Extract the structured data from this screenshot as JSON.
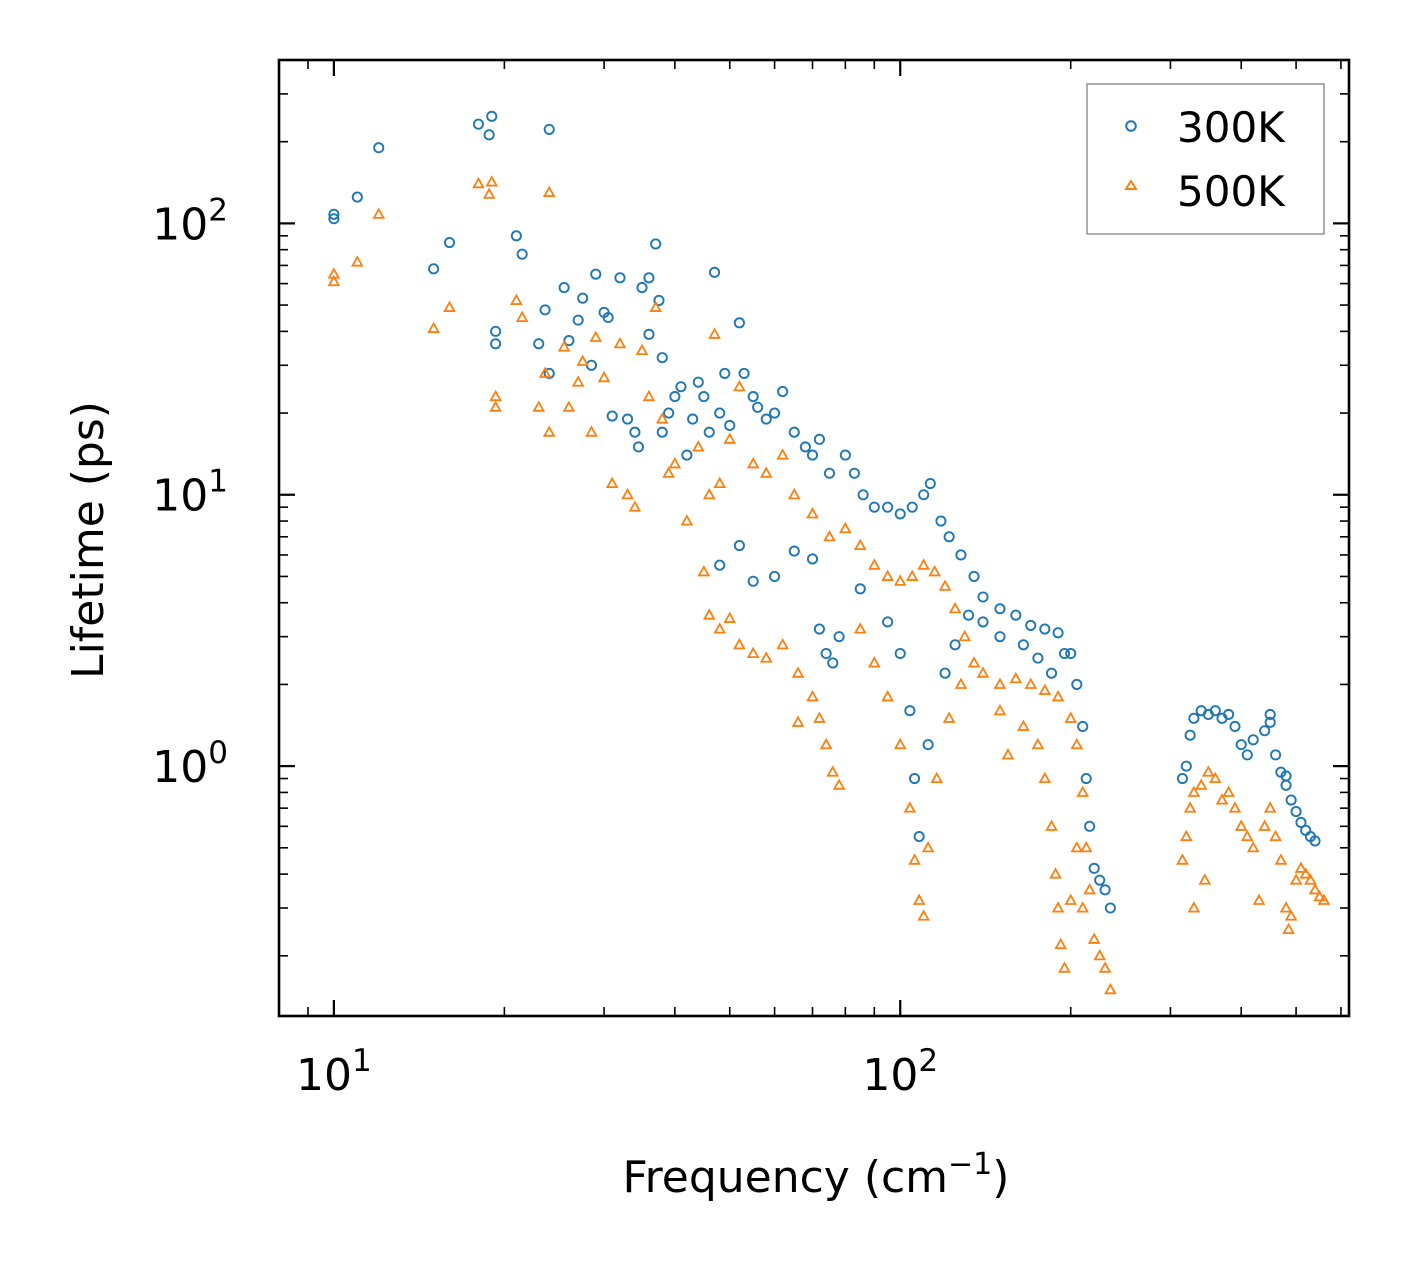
{
  "chart_data": {
    "type": "scatter",
    "title": "",
    "xlabel": "Frequency (cm",
    "xlabel_sup": "−1",
    "xlabel_close": ")",
    "ylabel": "Lifetime (ps)",
    "xscale": "log",
    "yscale": "log",
    "xlim": [
      8,
      620
    ],
    "ylim": [
      0.12,
      400
    ],
    "x_ticks": [
      {
        "value": 10,
        "base": "10",
        "exp": "1"
      },
      {
        "value": 100,
        "base": "10",
        "exp": "2"
      }
    ],
    "y_ticks": [
      {
        "value": 1,
        "base": "10",
        "exp": "0"
      },
      {
        "value": 10,
        "base": "10",
        "exp": "1"
      },
      {
        "value": 100,
        "base": "10",
        "exp": "2"
      }
    ],
    "legend_position": "top-right",
    "series": [
      {
        "name": "300K",
        "marker": "circle",
        "color": "#1f77b4",
        "points": [
          [
            10,
            104
          ],
          [
            10,
            108
          ],
          [
            11,
            125
          ],
          [
            12,
            190
          ],
          [
            15,
            68
          ],
          [
            16,
            85
          ],
          [
            18,
            232
          ],
          [
            19,
            248
          ],
          [
            18.8,
            212
          ],
          [
            19.3,
            40
          ],
          [
            19.3,
            36
          ],
          [
            21,
            90
          ],
          [
            21.5,
            77
          ],
          [
            23,
            36
          ],
          [
            23.6,
            48
          ],
          [
            24,
            222
          ],
          [
            24,
            28
          ],
          [
            25.5,
            58
          ],
          [
            26,
            37
          ],
          [
            27,
            44
          ],
          [
            27.5,
            53
          ],
          [
            28.5,
            30
          ],
          [
            29,
            65
          ],
          [
            30,
            47
          ],
          [
            30.5,
            45
          ],
          [
            31,
            19.5
          ],
          [
            32,
            63
          ],
          [
            33,
            19
          ],
          [
            34,
            17
          ],
          [
            34.5,
            15
          ],
          [
            35,
            58
          ],
          [
            36,
            39
          ],
          [
            36,
            63
          ],
          [
            37,
            84
          ],
          [
            37.5,
            52
          ],
          [
            38,
            32
          ],
          [
            38,
            17
          ],
          [
            39,
            20
          ],
          [
            40,
            23
          ],
          [
            41,
            25
          ],
          [
            42,
            14
          ],
          [
            43,
            19
          ],
          [
            44,
            26
          ],
          [
            45,
            23
          ],
          [
            46,
            17
          ],
          [
            47,
            66
          ],
          [
            48,
            20
          ],
          [
            49,
            28
          ],
          [
            50,
            18
          ],
          [
            52,
            43
          ],
          [
            53,
            28
          ],
          [
            55,
            23
          ],
          [
            56,
            21
          ],
          [
            58,
            19
          ],
          [
            60,
            20
          ],
          [
            62,
            24
          ],
          [
            65,
            17
          ],
          [
            68,
            15
          ],
          [
            70,
            14
          ],
          [
            72,
            16
          ],
          [
            75,
            12
          ],
          [
            80,
            14
          ],
          [
            83,
            12
          ],
          [
            86,
            10
          ],
          [
            90,
            9
          ],
          [
            95,
            9
          ],
          [
            100,
            8.5
          ],
          [
            105,
            9
          ],
          [
            110,
            10
          ],
          [
            113,
            11
          ],
          [
            118,
            8
          ],
          [
            122,
            7
          ],
          [
            128,
            6
          ],
          [
            135,
            5
          ],
          [
            140,
            4.2
          ],
          [
            150,
            3.8
          ],
          [
            160,
            3.6
          ],
          [
            170,
            3.3
          ],
          [
            180,
            3.2
          ],
          [
            190,
            3.1
          ],
          [
            200,
            2.6
          ],
          [
            205,
            2.0
          ],
          [
            210,
            1.4
          ],
          [
            213,
            0.9
          ],
          [
            216,
            0.6
          ],
          [
            220,
            0.42
          ],
          [
            225,
            0.38
          ],
          [
            230,
            0.35
          ],
          [
            235,
            0.3
          ],
          [
            48,
            5.5
          ],
          [
            52,
            6.5
          ],
          [
            55,
            4.8
          ],
          [
            60,
            5.0
          ],
          [
            65,
            6.2
          ],
          [
            70,
            5.8
          ],
          [
            72,
            3.2
          ],
          [
            74,
            2.6
          ],
          [
            76,
            2.4
          ],
          [
            78,
            3.0
          ],
          [
            85,
            4.5
          ],
          [
            95,
            3.4
          ],
          [
            100,
            2.6
          ],
          [
            104,
            1.6
          ],
          [
            106,
            0.9
          ],
          [
            108,
            0.55
          ],
          [
            112,
            1.2
          ],
          [
            120,
            2.2
          ],
          [
            125,
            2.8
          ],
          [
            132,
            3.6
          ],
          [
            140,
            3.4
          ],
          [
            150,
            3.0
          ],
          [
            165,
            2.8
          ],
          [
            175,
            2.5
          ],
          [
            185,
            2.2
          ],
          [
            195,
            2.6
          ],
          [
            315,
            0.9
          ],
          [
            320,
            1.0
          ],
          [
            325,
            1.3
          ],
          [
            330,
            1.5
          ],
          [
            340,
            1.6
          ],
          [
            350,
            1.55
          ],
          [
            360,
            1.6
          ],
          [
            370,
            1.5
          ],
          [
            380,
            1.55
          ],
          [
            390,
            1.4
          ],
          [
            400,
            1.2
          ],
          [
            410,
            1.1
          ],
          [
            420,
            1.25
          ],
          [
            440,
            1.35
          ],
          [
            450,
            1.45
          ],
          [
            460,
            1.1
          ],
          [
            470,
            0.95
          ],
          [
            480,
            0.85
          ],
          [
            490,
            0.75
          ],
          [
            500,
            0.68
          ],
          [
            510,
            0.62
          ],
          [
            520,
            0.58
          ],
          [
            530,
            0.55
          ],
          [
            540,
            0.53
          ],
          [
            450,
            1.55
          ],
          [
            480,
            0.92
          ]
        ]
      },
      {
        "name": "500K",
        "marker": "triangle",
        "color": "#ff7f0e",
        "points": [
          [
            10,
            61
          ],
          [
            10,
            65
          ],
          [
            11,
            72
          ],
          [
            12,
            108
          ],
          [
            15,
            41
          ],
          [
            16,
            49
          ],
          [
            18,
            140
          ],
          [
            19,
            142
          ],
          [
            18.8,
            128
          ],
          [
            19.3,
            23
          ],
          [
            19.3,
            21
          ],
          [
            21,
            52
          ],
          [
            21.5,
            45
          ],
          [
            23,
            21
          ],
          [
            23.6,
            28
          ],
          [
            24,
            130
          ],
          [
            24,
            17
          ],
          [
            25.5,
            35
          ],
          [
            26,
            21
          ],
          [
            27,
            26
          ],
          [
            27.5,
            31
          ],
          [
            28.5,
            17
          ],
          [
            29,
            38
          ],
          [
            30,
            27
          ],
          [
            31,
            11
          ],
          [
            32,
            36
          ],
          [
            33,
            10
          ],
          [
            34,
            9
          ],
          [
            35,
            34
          ],
          [
            36,
            23
          ],
          [
            37,
            49
          ],
          [
            38,
            19
          ],
          [
            39,
            12
          ],
          [
            40,
            13
          ],
          [
            42,
            8
          ],
          [
            44,
            15
          ],
          [
            46,
            10
          ],
          [
            47,
            39
          ],
          [
            48,
            11
          ],
          [
            50,
            16
          ],
          [
            52,
            25
          ],
          [
            55,
            13
          ],
          [
            58,
            12
          ],
          [
            62,
            14
          ],
          [
            65,
            10
          ],
          [
            70,
            8.5
          ],
          [
            75,
            7
          ],
          [
            80,
            7.5
          ],
          [
            85,
            6.5
          ],
          [
            90,
            5.5
          ],
          [
            95,
            5
          ],
          [
            100,
            4.8
          ],
          [
            105,
            5
          ],
          [
            110,
            5.5
          ],
          [
            115,
            5.2
          ],
          [
            120,
            4.6
          ],
          [
            125,
            3.8
          ],
          [
            130,
            3.0
          ],
          [
            140,
            2.2
          ],
          [
            150,
            2.0
          ],
          [
            160,
            2.1
          ],
          [
            170,
            2.0
          ],
          [
            180,
            1.9
          ],
          [
            190,
            1.8
          ],
          [
            200,
            1.5
          ],
          [
            205,
            1.2
          ],
          [
            210,
            0.8
          ],
          [
            213,
            0.5
          ],
          [
            216,
            0.35
          ],
          [
            220,
            0.23
          ],
          [
            225,
            0.2
          ],
          [
            230,
            0.18
          ],
          [
            235,
            0.15
          ],
          [
            45,
            5.2
          ],
          [
            46,
            3.6
          ],
          [
            48,
            3.2
          ],
          [
            50,
            3.5
          ],
          [
            52,
            2.8
          ],
          [
            55,
            2.6
          ],
          [
            58,
            2.5
          ],
          [
            62,
            2.8
          ],
          [
            66,
            2.2
          ],
          [
            70,
            1.8
          ],
          [
            72,
            1.5
          ],
          [
            74,
            1.2
          ],
          [
            76,
            0.95
          ],
          [
            78,
            0.85
          ],
          [
            66,
            1.45
          ],
          [
            85,
            3.2
          ],
          [
            90,
            2.4
          ],
          [
            95,
            1.8
          ],
          [
            100,
            1.2
          ],
          [
            104,
            0.7
          ],
          [
            106,
            0.45
          ],
          [
            108,
            0.32
          ],
          [
            110,
            0.28
          ],
          [
            112,
            0.5
          ],
          [
            116,
            0.9
          ],
          [
            122,
            1.5
          ],
          [
            128,
            2.0
          ],
          [
            135,
            2.4
          ],
          [
            150,
            1.6
          ],
          [
            155,
            1.1
          ],
          [
            165,
            1.4
          ],
          [
            175,
            1.2
          ],
          [
            180,
            0.9
          ],
          [
            185,
            0.6
          ],
          [
            188,
            0.4
          ],
          [
            190,
            0.3
          ],
          [
            192,
            0.22
          ],
          [
            195,
            0.18
          ],
          [
            200,
            0.32
          ],
          [
            205,
            0.5
          ],
          [
            210,
            0.3
          ],
          [
            315,
            0.45
          ],
          [
            320,
            0.55
          ],
          [
            325,
            0.7
          ],
          [
            330,
            0.8
          ],
          [
            340,
            0.85
          ],
          [
            350,
            0.95
          ],
          [
            360,
            0.9
          ],
          [
            370,
            0.75
          ],
          [
            380,
            0.8
          ],
          [
            390,
            0.7
          ],
          [
            400,
            0.6
          ],
          [
            410,
            0.55
          ],
          [
            420,
            0.5
          ],
          [
            440,
            0.6
          ],
          [
            450,
            0.7
          ],
          [
            460,
            0.55
          ],
          [
            470,
            0.45
          ],
          [
            480,
            0.3
          ],
          [
            485,
            0.25
          ],
          [
            490,
            0.28
          ],
          [
            500,
            0.38
          ],
          [
            510,
            0.42
          ],
          [
            520,
            0.4
          ],
          [
            530,
            0.38
          ],
          [
            540,
            0.35
          ],
          [
            550,
            0.33
          ],
          [
            560,
            0.32
          ],
          [
            330,
            0.3
          ],
          [
            345,
            0.38
          ],
          [
            430,
            0.32
          ]
        ]
      }
    ]
  }
}
